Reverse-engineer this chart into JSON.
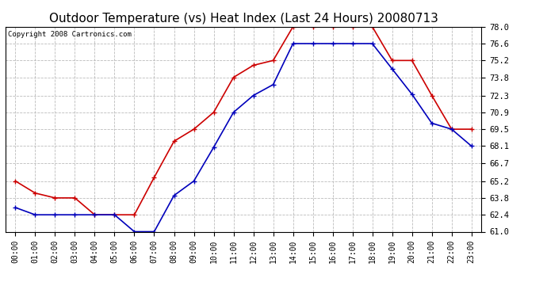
{
  "title": "Outdoor Temperature (vs) Heat Index (Last 24 Hours) 20080713",
  "copyright": "Copyright 2008 Cartronics.com",
  "x_labels": [
    "00:00",
    "01:00",
    "02:00",
    "03:00",
    "04:00",
    "05:00",
    "06:00",
    "07:00",
    "08:00",
    "09:00",
    "10:00",
    "11:00",
    "12:00",
    "13:00",
    "14:00",
    "15:00",
    "16:00",
    "17:00",
    "18:00",
    "19:00",
    "20:00",
    "21:00",
    "22:00",
    "23:00"
  ],
  "blue_data": [
    63.0,
    62.4,
    62.4,
    62.4,
    62.4,
    62.4,
    61.0,
    61.0,
    64.0,
    65.2,
    68.0,
    70.9,
    72.3,
    73.2,
    76.6,
    76.6,
    76.6,
    76.6,
    76.6,
    74.5,
    72.4,
    70.0,
    69.5,
    68.1
  ],
  "red_data": [
    65.2,
    64.2,
    63.8,
    63.8,
    62.4,
    62.4,
    62.4,
    65.5,
    68.5,
    69.5,
    70.9,
    73.8,
    74.8,
    75.2,
    78.0,
    78.0,
    78.0,
    78.0,
    78.0,
    75.2,
    75.2,
    72.3,
    69.5,
    69.5
  ],
  "ylim": [
    61.0,
    78.0
  ],
  "yticks": [
    61.0,
    62.4,
    63.8,
    65.2,
    66.7,
    68.1,
    69.5,
    70.9,
    72.3,
    73.8,
    75.2,
    76.6,
    78.0
  ],
  "blue_color": "#0000bb",
  "red_color": "#cc0000",
  "bg_color": "#ffffff",
  "grid_color": "#bbbbbb",
  "title_fontsize": 11,
  "copyright_fontsize": 6.5
}
